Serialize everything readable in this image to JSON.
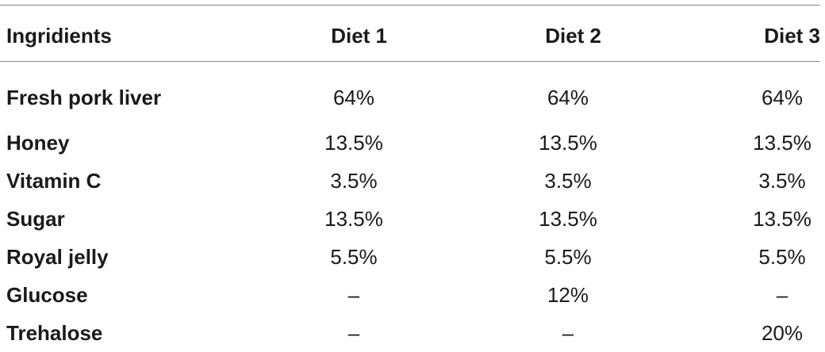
{
  "table": {
    "headers": [
      "Ingridients",
      "Diet 1",
      "Diet 2",
      "Diet 3"
    ],
    "rows": [
      [
        "Fresh pork liver",
        "64%",
        "64%",
        "64%"
      ],
      [
        "Honey",
        "13.5%",
        "13.5%",
        "13.5%"
      ],
      [
        "Vitamin C",
        "3.5%",
        "3.5%",
        "3.5%"
      ],
      [
        "Sugar",
        "13.5%",
        "13.5%",
        "13.5%"
      ],
      [
        "Royal jelly",
        "5.5%",
        "5.5%",
        "5.5%"
      ],
      [
        "Glucose",
        "–",
        "12%",
        "–"
      ],
      [
        "Trehalose",
        "–",
        "–",
        "20%"
      ]
    ]
  }
}
